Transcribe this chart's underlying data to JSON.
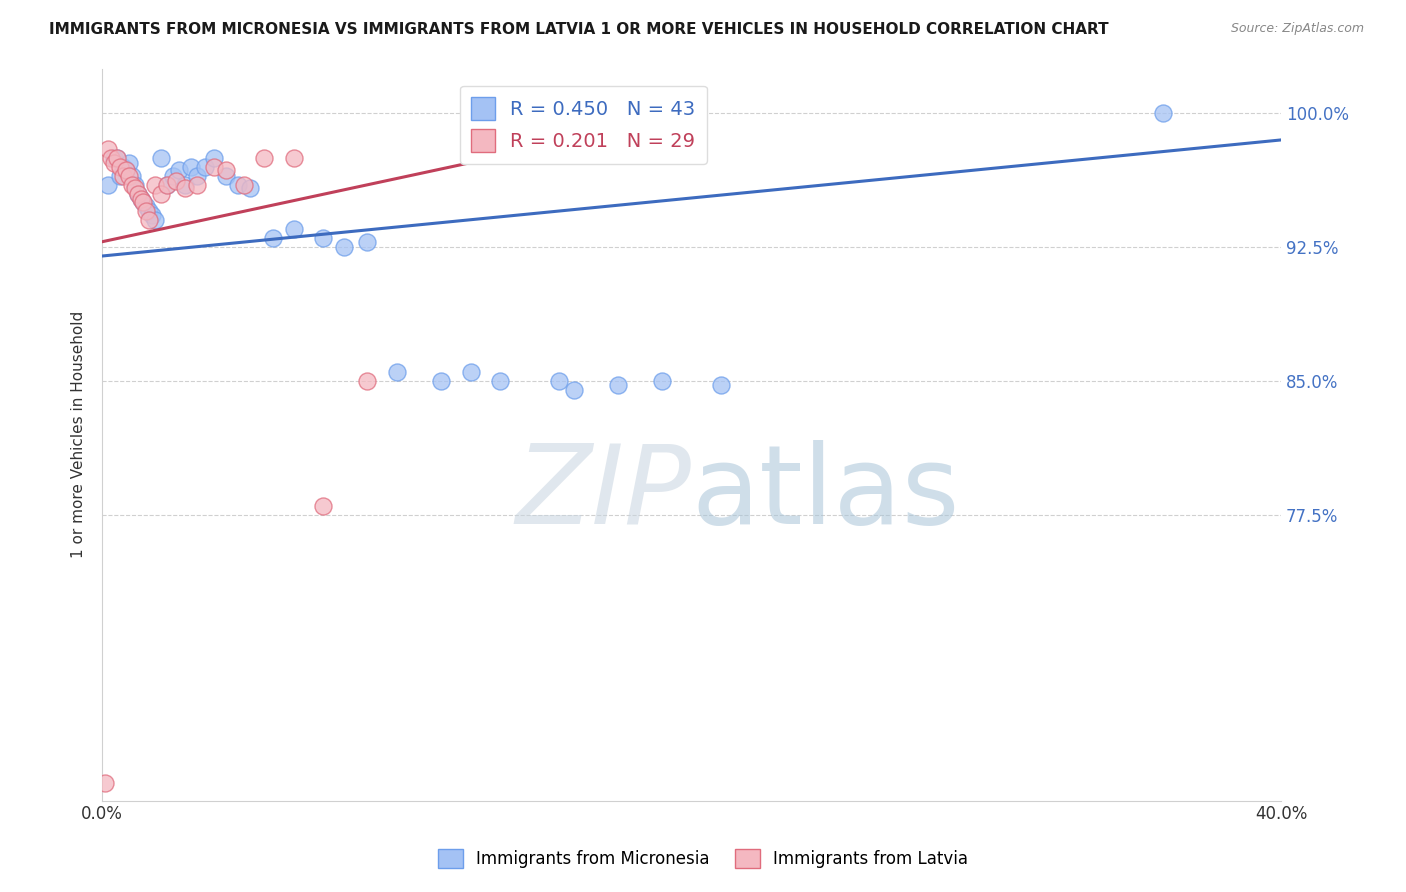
{
  "title": "IMMIGRANTS FROM MICRONESIA VS IMMIGRANTS FROM LATVIA 1 OR MORE VEHICLES IN HOUSEHOLD CORRELATION CHART",
  "source": "Source: ZipAtlas.com",
  "ylabel": "1 or more Vehicles in Household",
  "ytick_labels": [
    "100.0%",
    "92.5%",
    "85.0%",
    "77.5%"
  ],
  "ytick_values": [
    1.0,
    0.925,
    0.85,
    0.775
  ],
  "xlim": [
    0.0,
    0.4
  ],
  "ylim": [
    0.615,
    1.025
  ],
  "watermark_zip": "ZIP",
  "watermark_atlas": "atlas",
  "blue_R": 0.45,
  "blue_N": 43,
  "pink_R": 0.201,
  "pink_N": 29,
  "blue_color": "#a4c2f4",
  "pink_color": "#f4b8c1",
  "blue_edge_color": "#6d9eeb",
  "pink_edge_color": "#e06c7d",
  "blue_line_color": "#3d6bbf",
  "pink_line_color": "#c0405a",
  "blue_scatter_x": [
    0.002,
    0.004,
    0.005,
    0.006,
    0.007,
    0.008,
    0.009,
    0.01,
    0.011,
    0.012,
    0.013,
    0.014,
    0.015,
    0.016,
    0.017,
    0.018,
    0.02,
    0.022,
    0.024,
    0.026,
    0.028,
    0.03,
    0.032,
    0.035,
    0.038,
    0.042,
    0.046,
    0.05,
    0.058,
    0.065,
    0.075,
    0.082,
    0.09,
    0.1,
    0.115,
    0.125,
    0.135,
    0.155,
    0.16,
    0.175,
    0.19,
    0.21,
    0.36
  ],
  "blue_scatter_y": [
    0.96,
    0.975,
    0.975,
    0.965,
    0.97,
    0.968,
    0.972,
    0.965,
    0.96,
    0.955,
    0.952,
    0.95,
    0.948,
    0.945,
    0.943,
    0.94,
    0.975,
    0.96,
    0.965,
    0.968,
    0.96,
    0.97,
    0.965,
    0.97,
    0.975,
    0.965,
    0.96,
    0.958,
    0.93,
    0.935,
    0.93,
    0.925,
    0.928,
    0.855,
    0.85,
    0.855,
    0.85,
    0.85,
    0.845,
    0.848,
    0.85,
    0.848,
    1.0
  ],
  "pink_scatter_x": [
    0.002,
    0.003,
    0.004,
    0.005,
    0.006,
    0.007,
    0.008,
    0.009,
    0.01,
    0.011,
    0.012,
    0.013,
    0.014,
    0.015,
    0.016,
    0.018,
    0.02,
    0.022,
    0.025,
    0.028,
    0.032,
    0.038,
    0.042,
    0.048,
    0.055,
    0.065,
    0.075,
    0.09,
    0.001
  ],
  "pink_scatter_y": [
    0.98,
    0.975,
    0.972,
    0.975,
    0.97,
    0.965,
    0.968,
    0.965,
    0.96,
    0.958,
    0.955,
    0.952,
    0.95,
    0.945,
    0.94,
    0.96,
    0.955,
    0.96,
    0.962,
    0.958,
    0.96,
    0.97,
    0.968,
    0.96,
    0.975,
    0.975,
    0.78,
    0.85,
    0.625
  ],
  "blue_trendline_x": [
    0.0,
    0.4
  ],
  "blue_trendline_y": [
    0.92,
    0.985
  ],
  "pink_trendline_x": [
    0.0,
    0.175
  ],
  "pink_trendline_y": [
    0.928,
    0.99
  ],
  "legend_blue_label": "R = 0.450   N = 43",
  "legend_pink_label": "R = 0.201   N = 29",
  "grid_color": "#d0d0d0",
  "bg_color": "#ffffff"
}
